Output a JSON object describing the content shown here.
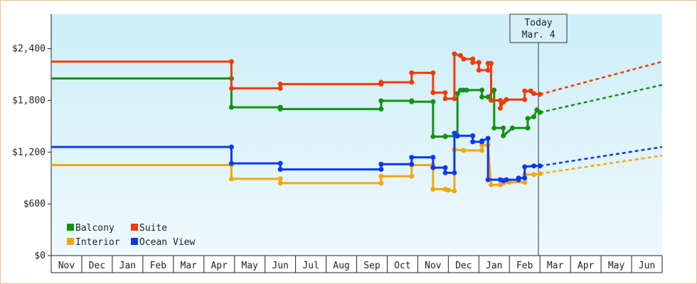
{
  "chart_data": {
    "type": "line",
    "title": "",
    "xlabel": "",
    "ylabel": "",
    "ylim": [
      0,
      2800
    ],
    "y_ticks": [
      {
        "value": 0,
        "label": "$0"
      },
      {
        "value": 600,
        "label": "$600"
      },
      {
        "value": 1200,
        "label": "$1,200"
      },
      {
        "value": 1800,
        "label": "$1,800"
      },
      {
        "value": 2400,
        "label": "$2,400"
      }
    ],
    "x_month_labels": [
      "Nov",
      "Dec",
      "Jan",
      "Feb",
      "Mar",
      "Apr",
      "May",
      "Jun",
      "Jul",
      "Aug",
      "Sep",
      "Oct",
      "Nov",
      "Dec",
      "Jan",
      "Feb",
      "Mar",
      "Apr",
      "May",
      "Jun"
    ],
    "xlim": [
      0,
      20
    ],
    "today": {
      "label_line1": "Today",
      "label_line2": "Mar. 4",
      "x": 15.95
    },
    "legend": {
      "placement": "bottom-left"
    },
    "background": {
      "top": "#cdeef8",
      "bottom": "#eef9fd"
    },
    "series": [
      {
        "name": "Balcony",
        "color": "#129212",
        "points": [
          [
            0,
            2055
          ],
          [
            5.9,
            2055
          ],
          [
            5.9,
            1720
          ],
          [
            7.5,
            1720
          ],
          [
            7.5,
            1700
          ],
          [
            10.8,
            1700
          ],
          [
            10.8,
            1795
          ],
          [
            11.8,
            1795
          ],
          [
            11.8,
            1785
          ],
          [
            12.5,
            1785
          ],
          [
            12.5,
            1380
          ],
          [
            12.9,
            1380
          ],
          [
            12.9,
            1385
          ],
          [
            13.3,
            1385
          ],
          [
            13.3,
            1880
          ],
          [
            13.4,
            1920
          ],
          [
            13.5,
            1920
          ],
          [
            13.6,
            1920
          ],
          [
            14.1,
            1920
          ],
          [
            14.1,
            1840
          ],
          [
            14.3,
            1840
          ],
          [
            14.5,
            1920
          ],
          [
            14.5,
            1480
          ],
          [
            14.8,
            1480
          ],
          [
            14.8,
            1390
          ],
          [
            15.1,
            1480
          ],
          [
            15.6,
            1480
          ],
          [
            15.6,
            1590
          ],
          [
            15.8,
            1610
          ],
          [
            15.9,
            1690
          ],
          [
            16.0,
            1660
          ]
        ],
        "forecast": [
          [
            16.0,
            1660
          ],
          [
            20,
            1980
          ]
        ]
      },
      {
        "name": "Suite",
        "color": "#f23a06",
        "points": [
          [
            0,
            2250
          ],
          [
            5.9,
            2250
          ],
          [
            5.9,
            1940
          ],
          [
            7.5,
            1940
          ],
          [
            7.5,
            1990
          ],
          [
            10.8,
            1990
          ],
          [
            10.8,
            2010
          ],
          [
            11.8,
            2010
          ],
          [
            11.8,
            2120
          ],
          [
            12.5,
            2120
          ],
          [
            12.5,
            1890
          ],
          [
            12.9,
            1890
          ],
          [
            12.9,
            1820
          ],
          [
            13.2,
            1820
          ],
          [
            13.2,
            2340
          ],
          [
            13.4,
            2320
          ],
          [
            13.5,
            2280
          ],
          [
            13.8,
            2280
          ],
          [
            13.8,
            2240
          ],
          [
            14.0,
            2240
          ],
          [
            14.0,
            2150
          ],
          [
            14.3,
            2150
          ],
          [
            14.3,
            2230
          ],
          [
            14.4,
            2230
          ],
          [
            14.4,
            1800
          ],
          [
            14.7,
            1800
          ],
          [
            14.7,
            1710
          ],
          [
            14.8,
            1780
          ],
          [
            14.9,
            1810
          ],
          [
            15.5,
            1810
          ],
          [
            15.5,
            1910
          ],
          [
            15.7,
            1910
          ],
          [
            15.8,
            1880
          ],
          [
            16.0,
            1870
          ]
        ],
        "forecast": [
          [
            16.0,
            1870
          ],
          [
            20,
            2250
          ]
        ]
      },
      {
        "name": "Interior",
        "color": "#f4a70a",
        "points": [
          [
            0,
            1050
          ],
          [
            5.9,
            1050
          ],
          [
            5.9,
            890
          ],
          [
            7.5,
            890
          ],
          [
            7.5,
            840
          ],
          [
            10.8,
            840
          ],
          [
            10.8,
            920
          ],
          [
            11.8,
            920
          ],
          [
            11.8,
            1050
          ],
          [
            12.5,
            1050
          ],
          [
            12.5,
            770
          ],
          [
            12.9,
            770
          ],
          [
            13.0,
            760
          ],
          [
            13.2,
            750
          ],
          [
            13.2,
            1230
          ],
          [
            13.5,
            1220
          ],
          [
            14.1,
            1220
          ],
          [
            14.1,
            1280
          ],
          [
            14.3,
            1280
          ],
          [
            14.4,
            820
          ],
          [
            14.7,
            820
          ],
          [
            14.8,
            840
          ],
          [
            15.0,
            850
          ],
          [
            15.5,
            850
          ],
          [
            15.5,
            940
          ],
          [
            15.8,
            940
          ],
          [
            16.0,
            950
          ]
        ],
        "forecast": [
          [
            16.0,
            950
          ],
          [
            20,
            1160
          ]
        ]
      },
      {
        "name": "Ocean View",
        "color": "#0c37f5",
        "points": [
          [
            0,
            1260
          ],
          [
            5.9,
            1260
          ],
          [
            5.9,
            1070
          ],
          [
            7.5,
            1070
          ],
          [
            7.5,
            1000
          ],
          [
            10.8,
            1000
          ],
          [
            10.8,
            1060
          ],
          [
            11.8,
            1060
          ],
          [
            11.8,
            1140
          ],
          [
            12.5,
            1140
          ],
          [
            12.5,
            1020
          ],
          [
            12.9,
            1020
          ],
          [
            12.9,
            960
          ],
          [
            13.2,
            960
          ],
          [
            13.2,
            1420
          ],
          [
            13.3,
            1390
          ],
          [
            13.8,
            1390
          ],
          [
            13.8,
            1320
          ],
          [
            14.1,
            1320
          ],
          [
            14.1,
            1330
          ],
          [
            14.3,
            1360
          ],
          [
            14.3,
            880
          ],
          [
            14.7,
            880
          ],
          [
            14.8,
            870
          ],
          [
            14.9,
            880
          ],
          [
            15.3,
            880
          ],
          [
            15.3,
            900
          ],
          [
            15.5,
            900
          ],
          [
            15.5,
            1030
          ],
          [
            15.8,
            1040
          ],
          [
            16.0,
            1040
          ]
        ],
        "forecast": [
          [
            16.0,
            1040
          ],
          [
            20,
            1260
          ]
        ]
      }
    ]
  }
}
